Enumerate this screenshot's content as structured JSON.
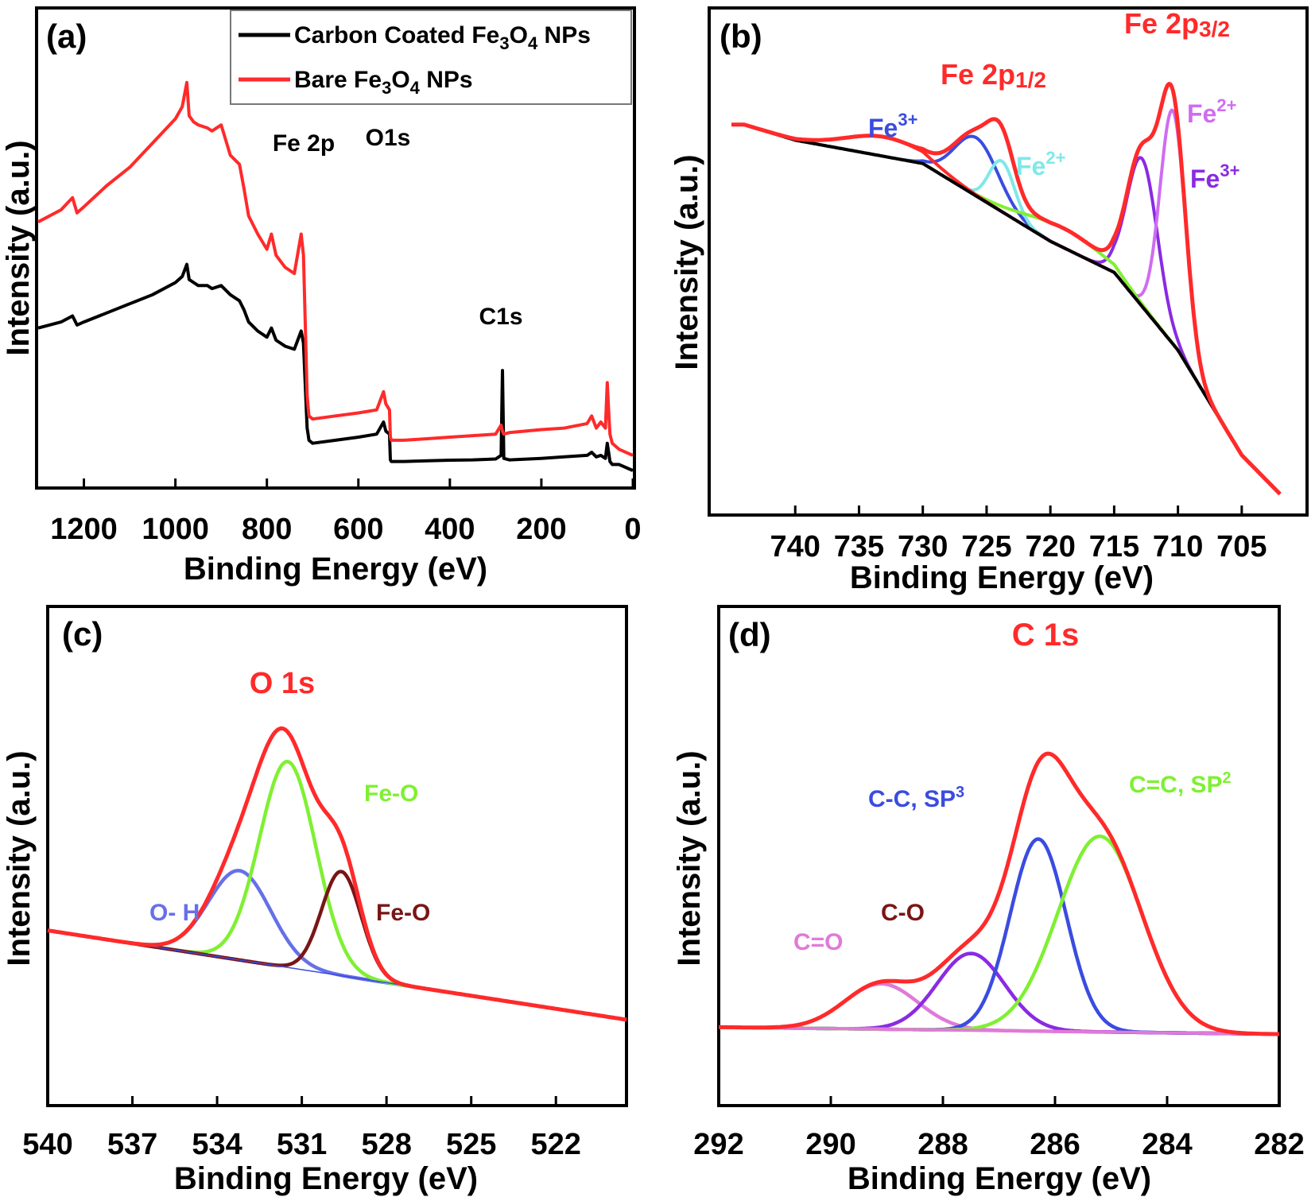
{
  "figure_colors": {
    "frame": "#000000",
    "red": "#ff2a2a",
    "black": "#000000",
    "blue": "#3a4ce0",
    "cyan": "#7fe8e8",
    "violet": "#cf6cf2",
    "purple": "#8a2be2",
    "green": "#7ff032",
    "brown": "#7a1515",
    "slate": "#6670e8",
    "pink": "#e07ad8"
  },
  "chart_data": [
    {
      "panel": "(a)",
      "type": "line",
      "xlabel": "Binding Energy (eV)",
      "ylabel": "Intensity (a.u.)",
      "xlim": [
        1300,
        0
      ],
      "xticks": [
        1200,
        1000,
        800,
        600,
        400,
        200,
        0
      ],
      "reversed_x": true,
      "legend": {
        "placement": "top-right",
        "entries": [
          {
            "label": "Carbon Coated Fe₃O₄ NPs",
            "color": "#000000"
          },
          {
            "label": "Bare Fe₃O₄ NPs",
            "color": "#ff2a2a"
          }
        ]
      },
      "annotations": [
        {
          "text": "Fe 2p",
          "x": 710,
          "y": 9.3
        },
        {
          "text": "O1s",
          "x": 530,
          "y": 9.5
        },
        {
          "text": "C1s",
          "x": 285,
          "y": 4.7
        }
      ],
      "series": [
        {
          "name": "Carbon Coated Fe₃O₄ NPs",
          "color": "#000000",
          "x": [
            1300,
            1250,
            1225,
            1215,
            1200,
            1150,
            1100,
            1050,
            1000,
            985,
            975,
            970,
            960,
            950,
            930,
            920,
            900,
            880,
            860,
            850,
            840,
            820,
            800,
            790,
            780,
            760,
            740,
            725,
            720,
            712,
            710,
            708,
            700,
            650,
            600,
            560,
            545,
            540,
            532,
            530,
            528,
            500,
            450,
            400,
            350,
            300,
            288,
            285,
            282,
            270,
            200,
            150,
            100,
            90,
            80,
            70,
            60,
            56,
            52,
            50,
            45,
            30,
            0
          ],
          "y": [
            4.7,
            4.9,
            5.1,
            4.8,
            4.9,
            5.2,
            5.5,
            5.8,
            6.2,
            6.4,
            6.8,
            6.3,
            6.2,
            6.1,
            6.1,
            6.0,
            6.1,
            5.8,
            5.6,
            5.3,
            4.9,
            4.6,
            4.4,
            4.7,
            4.3,
            4.1,
            4.0,
            4.6,
            4.2,
            1.4,
            1.2,
            1.0,
            0.9,
            1.0,
            1.1,
            1.2,
            1.6,
            1.3,
            1.2,
            0.35,
            0.3,
            0.3,
            0.32,
            0.34,
            0.35,
            0.38,
            0.5,
            3.3,
            0.4,
            0.35,
            0.4,
            0.45,
            0.5,
            0.6,
            0.45,
            0.5,
            0.4,
            0.9,
            0.5,
            0.3,
            0.2,
            0.2,
            0.0
          ]
        },
        {
          "name": "Bare Fe₃O₄ NPs",
          "color": "#ff2a2a",
          "x": [
            1300,
            1250,
            1225,
            1215,
            1200,
            1150,
            1100,
            1050,
            1000,
            985,
            975,
            970,
            960,
            950,
            930,
            920,
            900,
            880,
            860,
            850,
            840,
            820,
            800,
            790,
            780,
            760,
            740,
            725,
            720,
            712,
            710,
            708,
            700,
            650,
            600,
            560,
            545,
            540,
            532,
            530,
            528,
            500,
            450,
            400,
            350,
            300,
            288,
            285,
            282,
            270,
            200,
            150,
            100,
            90,
            80,
            70,
            60,
            56,
            52,
            50,
            45,
            30,
            0
          ],
          "y": [
            8.2,
            8.6,
            9.0,
            8.5,
            8.7,
            9.4,
            10.0,
            10.8,
            11.6,
            12.0,
            12.8,
            11.7,
            11.5,
            11.4,
            11.3,
            11.2,
            11.4,
            10.4,
            10.1,
            9.3,
            8.4,
            7.8,
            7.3,
            7.8,
            7.1,
            6.7,
            6.5,
            7.8,
            7.1,
            2.5,
            2.1,
            1.8,
            1.7,
            1.8,
            1.9,
            2.0,
            2.6,
            2.2,
            2.0,
            1.1,
            1.0,
            1.0,
            1.05,
            1.1,
            1.15,
            1.2,
            1.5,
            1.3,
            1.2,
            1.25,
            1.35,
            1.4,
            1.55,
            1.8,
            1.4,
            1.6,
            1.4,
            2.9,
            1.7,
            1.2,
            0.9,
            0.7,
            0.5
          ]
        }
      ]
    },
    {
      "panel": "(b)",
      "type": "line",
      "xlabel": "Binding Energy (eV)",
      "ylabel": "Intensity (a.u.)",
      "xlim": [
        745,
        702
      ],
      "xticks": [
        740,
        735,
        730,
        725,
        720,
        715,
        710,
        705
      ],
      "reversed_x": true,
      "annotations": [
        {
          "text": "Fe 2p3/2",
          "color": "#ff2a2a"
        },
        {
          "text": "Fe 2p1/2",
          "color": "#ff2a2a"
        },
        {
          "text": "Fe3+",
          "color": "#3a4ce0"
        },
        {
          "text": "Fe2+",
          "color": "#7fe8e8"
        },
        {
          "text": "Fe2+",
          "color": "#cf6cf2"
        },
        {
          "text": "Fe3+",
          "color": "#8a2be2"
        }
      ],
      "background": {
        "x": [
          744,
          740,
          735,
          730,
          725,
          720,
          715,
          710,
          705,
          702
        ],
        "y": [
          1.0,
          0.96,
          0.93,
          0.9,
          0.8,
          0.7,
          0.62,
          0.42,
          0.15,
          0.05
        ]
      },
      "peaks": [
        {
          "component": "Fe3+ 2p1/2",
          "center": 725.8,
          "height": 0.15,
          "sigma": 1.7,
          "color": "#3a4ce0"
        },
        {
          "component": "Fe2+ 2p1/2",
          "center": 723.8,
          "height": 0.13,
          "sigma": 1.0,
          "color": "#7fe8e8"
        },
        {
          "component": "Fe3+ 2p3/2",
          "center": 712.8,
          "height": 0.38,
          "sigma": 1.2,
          "color": "#8a2be2"
        },
        {
          "component": "Fe2+ 2p3/2",
          "center": 710.4,
          "height": 0.6,
          "sigma": 1.0,
          "color": "#cf6cf2"
        },
        {
          "component": "satellite",
          "center": 719.0,
          "height": 0.05,
          "sigma": 3.0,
          "color": "#7ff032"
        },
        {
          "component": "satellite",
          "center": 733.0,
          "height": 0.05,
          "sigma": 3.0,
          "color": "#ff2a2a"
        }
      ],
      "envelope_color": "#ff2a2a",
      "background_color": "#000000",
      "ylim": [
        0,
        1.3
      ]
    },
    {
      "panel": "(c)",
      "type": "line",
      "xlabel": "Binding Energy (eV)",
      "ylabel": "Intensity (a.u.)",
      "xlim": [
        540,
        519.5
      ],
      "xticks": [
        540,
        537,
        534,
        531,
        528,
        525,
        522
      ],
      "reversed_x": true,
      "annotations": [
        {
          "text": "O 1s",
          "color": "#ff2a2a"
        },
        {
          "text": "Fe-O",
          "color": "#7ff032"
        },
        {
          "text": "Fe-O",
          "color": "#7a1515"
        },
        {
          "text": "O- H",
          "color": "#6670e8"
        }
      ],
      "background": {
        "x": [
          540,
          519.5
        ],
        "y": [
          0.4,
          0.04
        ]
      },
      "peaks": [
        {
          "component": "O-H",
          "center": 533.2,
          "height": 0.36,
          "sigma": 1.1,
          "color": "#6670e8"
        },
        {
          "component": "Fe-O",
          "center": 531.5,
          "height": 0.83,
          "sigma": 1.0,
          "color": "#7ff032"
        },
        {
          "component": "Fe-O",
          "center": 529.6,
          "height": 0.42,
          "sigma": 0.7,
          "color": "#7a1515"
        }
      ],
      "envelope_color": "#ff2a2a",
      "background_color": "#3a4ce0",
      "ylim": [
        -0.3,
        1.7
      ]
    },
    {
      "panel": "(d)",
      "type": "line",
      "xlabel": "Binding Energy (eV)",
      "ylabel": "Intensity (a.u.)",
      "xlim": [
        292,
        282
      ],
      "xticks": [
        292,
        290,
        288,
        286,
        284,
        282
      ],
      "reversed_x": true,
      "annotations": [
        {
          "text": "C 1s",
          "color": "#ff2a2a"
        },
        {
          "text": "C=C, SP2",
          "color": "#7ff032"
        },
        {
          "text": "C-C, SP3",
          "color": "#3a4ce0"
        },
        {
          "text": "C-O",
          "color": "#7a1515"
        },
        {
          "text": "C=O",
          "color": "#e07ad8"
        }
      ],
      "background": {
        "x": [
          292,
          282
        ],
        "y": [
          0.02,
          0.0
        ]
      },
      "peaks": [
        {
          "component": "C=O",
          "center": 289.1,
          "height": 0.13,
          "sigma": 0.65,
          "color": "#e07ad8"
        },
        {
          "component": "C-O",
          "center": 287.5,
          "height": 0.22,
          "sigma": 0.6,
          "color": "#8a2be2"
        },
        {
          "component": "C-C, SP3",
          "center": 286.3,
          "height": 0.55,
          "sigma": 0.5,
          "color": "#3a4ce0"
        },
        {
          "component": "C=C, SP2",
          "center": 285.2,
          "height": 0.56,
          "sigma": 0.75,
          "color": "#7ff032"
        }
      ],
      "envelope_color": "#ff2a2a",
      "background_color": "#e07ad8",
      "ylim": [
        -0.2,
        1.22
      ]
    }
  ],
  "labels": {
    "a": {
      "letter": "(a)",
      "xlabel": "Binding Energy (eV)",
      "ylabel": "Intensity (a.u.)",
      "ticks": [
        "1200",
        "1000",
        "800",
        "600",
        "400",
        "200",
        "0"
      ],
      "fe2p": "Fe 2p",
      "o1s": "O1s",
      "c1s": "C1s",
      "legend_black_main": "Carbon Coated Fe",
      "legend_black_s1": "3",
      "legend_black_mid": "O",
      "legend_black_s2": "4",
      "legend_black_end": " NPs",
      "legend_red_main": "Bare Fe",
      "legend_red_s1": "3",
      "legend_red_mid": "O",
      "legend_red_s2": "4",
      "legend_red_end": " NPs"
    },
    "b": {
      "letter": "(b)",
      "xlabel": "Binding Energy (eV)",
      "ylabel": "Intensity (a.u.)",
      "ticks": [
        "740",
        "735",
        "730",
        "725",
        "720",
        "715",
        "710",
        "705"
      ],
      "fe2p32_main": "Fe 2p",
      "fe2p32_sub": "3/2",
      "fe2p12_main": "Fe 2p",
      "fe2p12_sub": "1/2",
      "fe_main": "Fe",
      "sup3": "3+",
      "sup2": "2+"
    },
    "c": {
      "letter": "(c)",
      "xlabel": "Binding Energy (eV)",
      "ylabel": "Intensity (a.u.)",
      "ticks": [
        "540",
        "537",
        "534",
        "531",
        "528",
        "525",
        "522"
      ],
      "o1s": "O 1s",
      "feo_green": "Fe-O",
      "feo_brown": "Fe-O",
      "oh": "O- H"
    },
    "d": {
      "letter": "(d)",
      "xlabel": "Binding Energy (eV)",
      "ylabel": "Intensity (a.u.)",
      "ticks": [
        "292",
        "290",
        "288",
        "286",
        "284",
        "282"
      ],
      "c1s": "C 1s",
      "cc_sp2_main": "C=C, SP",
      "cc_sp2_sup": "2",
      "cc_sp3_main": "C-C, SP",
      "cc_sp3_sup": "3",
      "co": "C-O",
      "c_eq_o": "C=O"
    }
  }
}
